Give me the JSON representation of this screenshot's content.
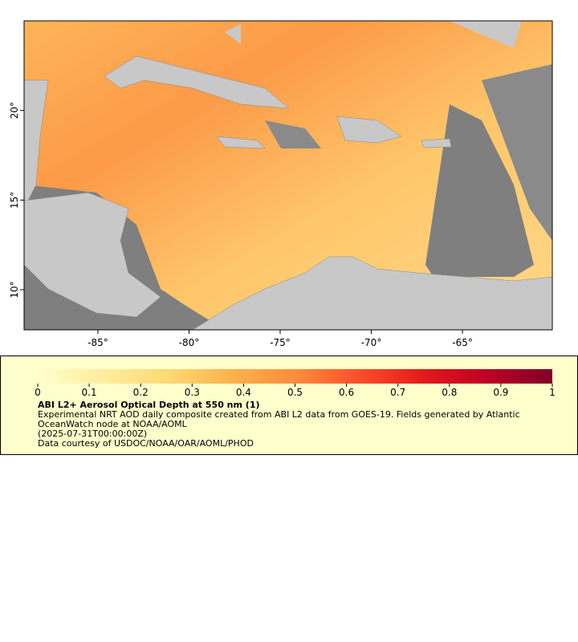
{
  "map": {
    "xlim": [
      -89.05,
      -60.07
    ],
    "ylim": [
      7.76,
      25.0
    ],
    "xticks": [
      {
        "value": -85,
        "label": "-85°"
      },
      {
        "value": -80,
        "label": "-80°"
      },
      {
        "value": -75,
        "label": "-75°"
      },
      {
        "value": -70,
        "label": "-70°"
      },
      {
        "value": -65,
        "label": "-65°"
      }
    ],
    "yticks": [
      {
        "value": 10,
        "label": "10°"
      },
      {
        "value": 15,
        "label": "15°"
      },
      {
        "value": 20,
        "label": "20°"
      }
    ]
  },
  "colorbar": {
    "range": [
      0,
      1
    ],
    "ticks": [
      0,
      0.1,
      0.2,
      0.3,
      0.4,
      0.5,
      0.6,
      0.7,
      0.8,
      0.9,
      1
    ],
    "colors": [
      "#ffffcc",
      "#ffeda0",
      "#fed976",
      "#feb24c",
      "#fd8d3c",
      "#fc4e2a",
      "#e31a1c",
      "#bd0026",
      "#800026"
    ]
  },
  "legend": {
    "title": "ABI L2+ Aerosol Optical Depth at 550 nm (1)",
    "description": "Experimental NRT AOD daily composite created from ABI L2 data from GOES-19. Fields generated by Atlantic OceanWatch node at NOAA/AOML",
    "time": "(2025-07-31T00:00:00Z)",
    "credit": "Data courtesy of USDOC/NOAA/OAR/AOML/PHOD"
  }
}
